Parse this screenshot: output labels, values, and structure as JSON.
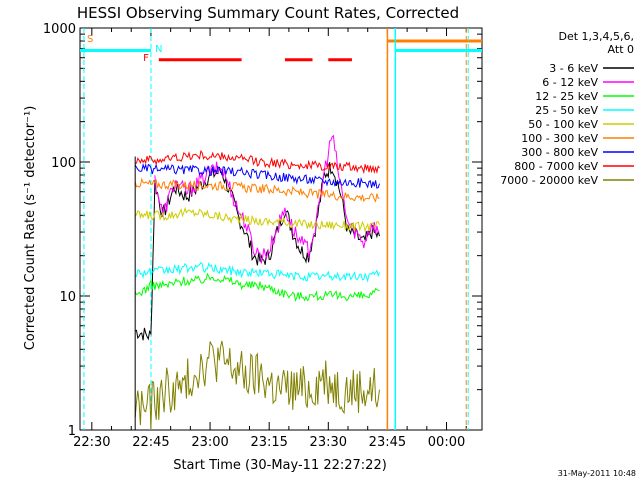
{
  "chart_data": {
    "type": "line",
    "title": "HESSI Observing Summary Count Rates, Corrected",
    "xlabel": "Start Time (30-May-11 22:27:22)",
    "ylabel": "Corrected Count Rate (s⁻¹ detector⁻¹)",
    "yscale": "log",
    "ylim": [
      1,
      1000
    ],
    "xlim_minutes_after_2227": [
      0,
      102
    ],
    "x_ticks": [
      "22:30",
      "22:45",
      "23:00",
      "23:15",
      "23:30",
      "23:45",
      "00:00"
    ],
    "x_tick_minutes_after_2227": [
      3,
      18,
      33,
      48,
      63,
      78,
      93
    ],
    "y_ticks": [
      "1",
      "10",
      "100",
      "1000"
    ],
    "y_tick_values": [
      1,
      10,
      100,
      1000
    ],
    "timestamp": "31-May-2011 10:48",
    "legend_header_1": "Det 1,3,4,5,6,",
    "legend_header_2": "Att 0",
    "markers": [
      {
        "label": "S",
        "color": "#ff7f00"
      },
      {
        "label": "N",
        "color": "#00ffff"
      },
      {
        "label": "F",
        "color": "#ff0000"
      }
    ],
    "data_gap_minutes": [
      [
        0,
        14
      ],
      [
        77,
        102
      ]
    ],
    "series": [
      {
        "name": "3 - 6 keV",
        "color": "#000000",
        "points": [
          [
            14,
            5.5
          ],
          [
            18,
            5
          ],
          [
            19,
            70
          ],
          [
            21,
            40
          ],
          [
            24,
            65
          ],
          [
            27,
            55
          ],
          [
            30,
            65
          ],
          [
            33,
            80
          ],
          [
            36,
            85
          ],
          [
            38,
            60
          ],
          [
            40,
            40
          ],
          [
            42,
            30
          ],
          [
            44,
            20
          ],
          [
            46,
            18
          ],
          [
            48,
            20
          ],
          [
            50,
            30
          ],
          [
            52,
            45
          ],
          [
            54,
            30
          ],
          [
            56,
            22
          ],
          [
            58,
            20
          ],
          [
            60,
            35
          ],
          [
            62,
            80
          ],
          [
            64,
            95
          ],
          [
            66,
            60
          ],
          [
            68,
            30
          ],
          [
            70,
            28
          ],
          [
            72,
            25
          ],
          [
            74,
            30
          ],
          [
            76,
            28
          ]
        ]
      },
      {
        "name": "6 - 12 keV",
        "color": "#ff00ff",
        "points": [
          [
            19,
            75
          ],
          [
            21,
            40
          ],
          [
            24,
            70
          ],
          [
            27,
            60
          ],
          [
            30,
            70
          ],
          [
            33,
            85
          ],
          [
            36,
            90
          ],
          [
            38,
            65
          ],
          [
            40,
            45
          ],
          [
            42,
            35
          ],
          [
            44,
            23
          ],
          [
            46,
            20
          ],
          [
            48,
            22
          ],
          [
            50,
            32
          ],
          [
            52,
            45
          ],
          [
            54,
            32
          ],
          [
            56,
            25
          ],
          [
            58,
            22
          ],
          [
            60,
            35
          ],
          [
            62,
            85
          ],
          [
            64,
            160
          ],
          [
            66,
            70
          ],
          [
            68,
            35
          ],
          [
            70,
            30
          ],
          [
            72,
            25
          ],
          [
            74,
            35
          ],
          [
            76,
            30
          ]
        ]
      },
      {
        "name": "12 - 25 keV",
        "color": "#00ff00",
        "points": [
          [
            14,
            10
          ],
          [
            18,
            12
          ],
          [
            22,
            12
          ],
          [
            26,
            13
          ],
          [
            30,
            13
          ],
          [
            34,
            14
          ],
          [
            38,
            13
          ],
          [
            42,
            12
          ],
          [
            46,
            12
          ],
          [
            50,
            11
          ],
          [
            54,
            10
          ],
          [
            58,
            10
          ],
          [
            62,
            10
          ],
          [
            66,
            10
          ],
          [
            70,
            10
          ],
          [
            74,
            10
          ],
          [
            76,
            11
          ]
        ]
      },
      {
        "name": "25 - 50 keV",
        "color": "#00ffff",
        "points": [
          [
            14,
            15
          ],
          [
            18,
            15
          ],
          [
            22,
            15.5
          ],
          [
            26,
            16
          ],
          [
            30,
            16.5
          ],
          [
            34,
            16
          ],
          [
            38,
            15.5
          ],
          [
            42,
            15
          ],
          [
            46,
            15
          ],
          [
            50,
            14.5
          ],
          [
            54,
            14
          ],
          [
            58,
            14
          ],
          [
            62,
            14
          ],
          [
            66,
            14
          ],
          [
            70,
            14
          ],
          [
            74,
            14
          ],
          [
            76,
            15
          ]
        ]
      },
      {
        "name": "50 - 100 keV",
        "color": "#cccc00",
        "points": [
          [
            14,
            40
          ],
          [
            18,
            40
          ],
          [
            22,
            40
          ],
          [
            26,
            42
          ],
          [
            30,
            42
          ],
          [
            34,
            40
          ],
          [
            38,
            38
          ],
          [
            42,
            37
          ],
          [
            46,
            36
          ],
          [
            50,
            36
          ],
          [
            54,
            35
          ],
          [
            58,
            34
          ],
          [
            62,
            34
          ],
          [
            66,
            34
          ],
          [
            70,
            33
          ],
          [
            74,
            33
          ],
          [
            76,
            34
          ]
        ]
      },
      {
        "name": "100 - 300 keV",
        "color": "#ff7f00",
        "points": [
          [
            14,
            70
          ],
          [
            18,
            68
          ],
          [
            22,
            68
          ],
          [
            26,
            67
          ],
          [
            30,
            67
          ],
          [
            34,
            67
          ],
          [
            38,
            66
          ],
          [
            42,
            64
          ],
          [
            46,
            63
          ],
          [
            50,
            62
          ],
          [
            54,
            60
          ],
          [
            58,
            58
          ],
          [
            62,
            57
          ],
          [
            66,
            56
          ],
          [
            70,
            55
          ],
          [
            74,
            54
          ],
          [
            76,
            54
          ]
        ]
      },
      {
        "name": "300 - 800 keV",
        "color": "#0000ff",
        "points": [
          [
            14,
            90
          ],
          [
            18,
            88
          ],
          [
            22,
            88
          ],
          [
            26,
            87
          ],
          [
            30,
            87
          ],
          [
            34,
            86
          ],
          [
            38,
            85
          ],
          [
            42,
            83
          ],
          [
            46,
            80
          ],
          [
            50,
            78
          ],
          [
            54,
            76
          ],
          [
            58,
            74
          ],
          [
            62,
            72
          ],
          [
            66,
            71
          ],
          [
            70,
            70
          ],
          [
            74,
            69
          ],
          [
            76,
            69
          ]
        ]
      },
      {
        "name": "800 - 7000 keV",
        "color": "#ff0000",
        "points": [
          [
            14,
            105
          ],
          [
            18,
            103
          ],
          [
            22,
            105
          ],
          [
            26,
            110
          ],
          [
            30,
            112
          ],
          [
            34,
            110
          ],
          [
            38,
            108
          ],
          [
            42,
            104
          ],
          [
            46,
            100
          ],
          [
            50,
            98
          ],
          [
            54,
            96
          ],
          [
            58,
            94
          ],
          [
            62,
            93
          ],
          [
            66,
            92
          ],
          [
            70,
            91
          ],
          [
            74,
            90
          ],
          [
            76,
            90
          ]
        ]
      },
      {
        "name": "7000 - 20000 keV",
        "color": "#808000",
        "points": [
          [
            14,
            1.5
          ],
          [
            18,
            1.5
          ],
          [
            22,
            2
          ],
          [
            26,
            2
          ],
          [
            30,
            3
          ],
          [
            34,
            3.5
          ],
          [
            38,
            3
          ],
          [
            42,
            2.5
          ],
          [
            46,
            2.5
          ],
          [
            50,
            2
          ],
          [
            54,
            2
          ],
          [
            58,
            2
          ],
          [
            62,
            2.5
          ],
          [
            66,
            2
          ],
          [
            70,
            2
          ],
          [
            74,
            2
          ],
          [
            76,
            2
          ]
        ]
      }
    ],
    "attenuator_in": {
      "start_minute": 78,
      "value": 800,
      "color": "#ff7f00"
    },
    "night_level": {
      "value": 680,
      "color": "#00ffff",
      "intervals": [
        [
          0,
          18
        ],
        [
          80,
          102
        ]
      ]
    },
    "flare_flag": {
      "value": 580,
      "color": "#ff0000",
      "intervals": [
        [
          20,
          41
        ],
        [
          52,
          59
        ],
        [
          63,
          69
        ]
      ]
    }
  }
}
